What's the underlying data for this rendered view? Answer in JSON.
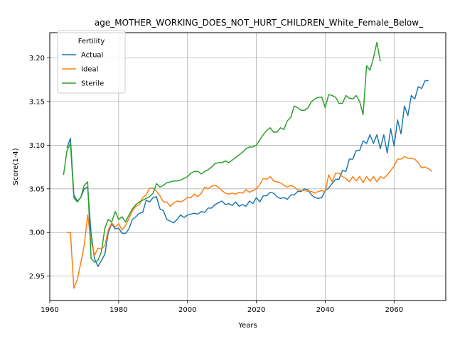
{
  "chart_data": {
    "type": "line",
    "title": "age_MOTHER_WORKING_DOES_NOT_HURT_CHILDREN_White_Female_Below_",
    "xlabel": "Years",
    "ylabel": "Score(1-4)",
    "xlim": [
      1960,
      2075
    ],
    "ylim": [
      2.922,
      3.229
    ],
    "xticks": [
      1960,
      1980,
      2000,
      2020,
      2040,
      2060
    ],
    "yticks": [
      2.95,
      3.0,
      3.05,
      3.1,
      3.15,
      3.2
    ],
    "ytick_labels": [
      "2.95",
      "3.00",
      "3.05",
      "3.10",
      "3.15",
      "3.20"
    ],
    "grid": true,
    "legend": {
      "title": "Fertility",
      "position": "top-left"
    },
    "series": [
      {
        "name": "Actual",
        "color": "#1f77b4",
        "points": [
          [
            1965,
            3.097
          ],
          [
            1966,
            3.108
          ],
          [
            1967,
            3.043
          ],
          [
            1968,
            3.036
          ],
          [
            1969,
            3.04
          ],
          [
            1970,
            3.05
          ],
          [
            1971,
            3.052
          ],
          [
            1972,
            2.999
          ],
          [
            1973,
            2.97
          ],
          [
            1974,
            2.961
          ],
          [
            1975,
            2.968
          ],
          [
            1976,
            2.975
          ],
          [
            1977,
            3.0
          ],
          [
            1978,
            3.01
          ],
          [
            1979,
            3.004
          ],
          [
            1980,
            3.005
          ],
          [
            1981,
            2.999
          ],
          [
            1982,
            2.999
          ],
          [
            1983,
            3.004
          ],
          [
            1984,
            3.015
          ],
          [
            1985,
            3.018
          ],
          [
            1986,
            3.022
          ],
          [
            1987,
            3.023
          ],
          [
            1988,
            3.037
          ],
          [
            1989,
            3.035
          ],
          [
            1990,
            3.04
          ],
          [
            1991,
            3.041
          ],
          [
            1992,
            3.027
          ],
          [
            1993,
            3.025
          ],
          [
            1994,
            3.015
          ],
          [
            1995,
            3.013
          ],
          [
            1996,
            3.011
          ],
          [
            1997,
            3.015
          ],
          [
            1998,
            3.02
          ],
          [
            1999,
            3.017
          ],
          [
            2000,
            3.02
          ],
          [
            2001,
            3.021
          ],
          [
            2002,
            3.022
          ],
          [
            2003,
            3.021
          ],
          [
            2004,
            3.024
          ],
          [
            2005,
            3.023
          ],
          [
            2006,
            3.028
          ],
          [
            2007,
            3.028
          ],
          [
            2008,
            3.032
          ],
          [
            2009,
            3.034
          ],
          [
            2010,
            3.036
          ],
          [
            2011,
            3.032
          ],
          [
            2012,
            3.033
          ],
          [
            2013,
            3.031
          ],
          [
            2014,
            3.035
          ],
          [
            2015,
            3.03
          ],
          [
            2016,
            3.032
          ],
          [
            2017,
            3.03
          ],
          [
            2018,
            3.036
          ],
          [
            2019,
            3.033
          ],
          [
            2020,
            3.04
          ],
          [
            2021,
            3.035
          ],
          [
            2022,
            3.042
          ],
          [
            2023,
            3.042
          ],
          [
            2024,
            3.046
          ],
          [
            2025,
            3.045
          ],
          [
            2026,
            3.041
          ],
          [
            2027,
            3.039
          ],
          [
            2028,
            3.04
          ],
          [
            2029,
            3.038
          ],
          [
            2030,
            3.043
          ],
          [
            2031,
            3.043
          ],
          [
            2032,
            3.047
          ],
          [
            2033,
            3.047
          ],
          [
            2034,
            3.05
          ],
          [
            2035,
            3.049
          ],
          [
            2036,
            3.043
          ],
          [
            2037,
            3.04
          ],
          [
            2038,
            3.039
          ],
          [
            2039,
            3.04
          ],
          [
            2040,
            3.048
          ],
          [
            2041,
            3.051
          ],
          [
            2042,
            3.056
          ],
          [
            2043,
            3.061
          ],
          [
            2044,
            3.061
          ],
          [
            2045,
            3.071
          ],
          [
            2046,
            3.07
          ],
          [
            2047,
            3.084
          ],
          [
            2048,
            3.084
          ],
          [
            2049,
            3.094
          ],
          [
            2050,
            3.094
          ],
          [
            2051,
            3.105
          ],
          [
            2052,
            3.102
          ],
          [
            2053,
            3.112
          ],
          [
            2054,
            3.102
          ],
          [
            2055,
            3.112
          ],
          [
            2056,
            3.096
          ],
          [
            2057,
            3.112
          ],
          [
            2058,
            3.091
          ],
          [
            2059,
            3.119
          ],
          [
            2060,
            3.099
          ],
          [
            2061,
            3.129
          ],
          [
            2062,
            3.113
          ],
          [
            2063,
            3.145
          ],
          [
            2064,
            3.134
          ],
          [
            2065,
            3.157
          ],
          [
            2066,
            3.153
          ],
          [
            2067,
            3.167
          ],
          [
            2068,
            3.165
          ],
          [
            2069,
            3.174
          ],
          [
            2070,
            3.174
          ]
        ]
      },
      {
        "name": "Ideal",
        "color": "#ff7f0e",
        "points": [
          [
            1965,
            3.0
          ],
          [
            1966,
            3.0
          ],
          [
            1967,
            2.936
          ],
          [
            1968,
            2.946
          ],
          [
            1969,
            2.965
          ],
          [
            1970,
            2.985
          ],
          [
            1971,
            3.02
          ],
          [
            1972,
            2.99
          ],
          [
            1973,
            2.974
          ],
          [
            1974,
            2.982
          ],
          [
            1975,
            2.981
          ],
          [
            1976,
            2.985
          ],
          [
            1977,
            3.003
          ],
          [
            1978,
            3.011
          ],
          [
            1979,
            3.006
          ],
          [
            1980,
            3.01
          ],
          [
            1981,
            3.003
          ],
          [
            1982,
            3.008
          ],
          [
            1983,
            3.016
          ],
          [
            1984,
            3.025
          ],
          [
            1985,
            3.03
          ],
          [
            1986,
            3.032
          ],
          [
            1987,
            3.04
          ],
          [
            1988,
            3.043
          ],
          [
            1989,
            3.051
          ],
          [
            1990,
            3.051
          ],
          [
            1991,
            3.047
          ],
          [
            1992,
            3.042
          ],
          [
            1993,
            3.035
          ],
          [
            1994,
            3.035
          ],
          [
            1995,
            3.03
          ],
          [
            1996,
            3.034
          ],
          [
            1997,
            3.036
          ],
          [
            1998,
            3.035
          ],
          [
            1999,
            3.037
          ],
          [
            2000,
            3.04
          ],
          [
            2001,
            3.04
          ],
          [
            2002,
            3.044
          ],
          [
            2003,
            3.041
          ],
          [
            2004,
            3.045
          ],
          [
            2005,
            3.052
          ],
          [
            2006,
            3.05
          ],
          [
            2007,
            3.053
          ],
          [
            2008,
            3.054
          ],
          [
            2009,
            3.052
          ],
          [
            2010,
            3.048
          ],
          [
            2011,
            3.045
          ],
          [
            2012,
            3.044
          ],
          [
            2013,
            3.045
          ],
          [
            2014,
            3.044
          ],
          [
            2015,
            3.046
          ],
          [
            2016,
            3.045
          ],
          [
            2017,
            3.049
          ],
          [
            2018,
            3.046
          ],
          [
            2019,
            3.048
          ],
          [
            2020,
            3.05
          ],
          [
            2021,
            3.055
          ],
          [
            2022,
            3.062
          ],
          [
            2023,
            3.061
          ],
          [
            2024,
            3.064
          ],
          [
            2025,
            3.059
          ],
          [
            2026,
            3.058
          ],
          [
            2027,
            3.057
          ],
          [
            2028,
            3.054
          ],
          [
            2029,
            3.052
          ],
          [
            2030,
            3.054
          ],
          [
            2031,
            3.052
          ],
          [
            2032,
            3.049
          ],
          [
            2033,
            3.048
          ],
          [
            2034,
            3.048
          ],
          [
            2035,
            3.047
          ],
          [
            2036,
            3.047
          ],
          [
            2037,
            3.045
          ],
          [
            2038,
            3.047
          ],
          [
            2039,
            3.048
          ],
          [
            2040,
            3.047
          ],
          [
            2041,
            3.066
          ],
          [
            2042,
            3.058
          ],
          [
            2043,
            3.068
          ],
          [
            2044,
            3.068
          ],
          [
            2045,
            3.064
          ],
          [
            2046,
            3.062
          ],
          [
            2047,
            3.058
          ],
          [
            2048,
            3.064
          ],
          [
            2049,
            3.059
          ],
          [
            2050,
            3.064
          ],
          [
            2051,
            3.057
          ],
          [
            2052,
            3.064
          ],
          [
            2053,
            3.059
          ],
          [
            2054,
            3.064
          ],
          [
            2055,
            3.058
          ],
          [
            2056,
            3.064
          ],
          [
            2057,
            3.062
          ],
          [
            2058,
            3.066
          ],
          [
            2059,
            3.071
          ],
          [
            2060,
            3.076
          ],
          [
            2061,
            3.084
          ],
          [
            2062,
            3.084
          ],
          [
            2063,
            3.087
          ],
          [
            2064,
            3.085
          ],
          [
            2065,
            3.085
          ],
          [
            2066,
            3.084
          ],
          [
            2067,
            3.08
          ],
          [
            2068,
            3.074
          ],
          [
            2069,
            3.075
          ],
          [
            2070,
            3.073
          ],
          [
            2071,
            3.07
          ]
        ]
      },
      {
        "name": "Sterile",
        "color": "#2ca02c",
        "points": [
          [
            1964,
            3.066
          ],
          [
            1965,
            3.094
          ],
          [
            1966,
            3.102
          ],
          [
            1967,
            3.04
          ],
          [
            1968,
            3.035
          ],
          [
            1969,
            3.04
          ],
          [
            1970,
            3.054
          ],
          [
            1971,
            3.058
          ],
          [
            1972,
            2.97
          ],
          [
            1973,
            2.966
          ],
          [
            1974,
            2.968
          ],
          [
            1975,
            2.978
          ],
          [
            1976,
            3.005
          ],
          [
            1977,
            3.015
          ],
          [
            1978,
            3.012
          ],
          [
            1979,
            3.024
          ],
          [
            1980,
            3.015
          ],
          [
            1981,
            3.018
          ],
          [
            1982,
            3.012
          ],
          [
            1983,
            3.02
          ],
          [
            1984,
            3.027
          ],
          [
            1985,
            3.032
          ],
          [
            1986,
            3.035
          ],
          [
            1987,
            3.037
          ],
          [
            1988,
            3.039
          ],
          [
            1989,
            3.041
          ],
          [
            1990,
            3.045
          ],
          [
            1991,
            3.056
          ],
          [
            1992,
            3.052
          ],
          [
            1993,
            3.054
          ],
          [
            1994,
            3.057
          ],
          [
            1995,
            3.058
          ],
          [
            1996,
            3.059
          ],
          [
            1997,
            3.059
          ],
          [
            1998,
            3.06
          ],
          [
            1999,
            3.062
          ],
          [
            2000,
            3.064
          ],
          [
            2001,
            3.068
          ],
          [
            2002,
            3.07
          ],
          [
            2003,
            3.07
          ],
          [
            2004,
            3.067
          ],
          [
            2005,
            3.07
          ],
          [
            2006,
            3.072
          ],
          [
            2007,
            3.075
          ],
          [
            2008,
            3.079
          ],
          [
            2009,
            3.08
          ],
          [
            2010,
            3.08
          ],
          [
            2011,
            3.082
          ],
          [
            2012,
            3.08
          ],
          [
            2013,
            3.083
          ],
          [
            2014,
            3.086
          ],
          [
            2015,
            3.089
          ],
          [
            2016,
            3.092
          ],
          [
            2017,
            3.096
          ],
          [
            2018,
            3.098
          ],
          [
            2019,
            3.098
          ],
          [
            2020,
            3.1
          ],
          [
            2021,
            3.106
          ],
          [
            2022,
            3.112
          ],
          [
            2023,
            3.117
          ],
          [
            2024,
            3.12
          ],
          [
            2025,
            3.115
          ],
          [
            2026,
            3.115
          ],
          [
            2027,
            3.12
          ],
          [
            2028,
            3.118
          ],
          [
            2029,
            3.128
          ],
          [
            2030,
            3.132
          ],
          [
            2031,
            3.145
          ],
          [
            2032,
            3.143
          ],
          [
            2033,
            3.14
          ],
          [
            2034,
            3.14
          ],
          [
            2035,
            3.143
          ],
          [
            2036,
            3.15
          ],
          [
            2037,
            3.153
          ],
          [
            2038,
            3.155
          ],
          [
            2039,
            3.155
          ],
          [
            2040,
            3.143
          ],
          [
            2041,
            3.158
          ],
          [
            2042,
            3.157
          ],
          [
            2043,
            3.155
          ],
          [
            2044,
            3.148
          ],
          [
            2045,
            3.148
          ],
          [
            2046,
            3.157
          ],
          [
            2047,
            3.154
          ],
          [
            2048,
            3.153
          ],
          [
            2049,
            3.157
          ],
          [
            2050,
            3.15
          ],
          [
            2051,
            3.135
          ],
          [
            2052,
            3.191
          ],
          [
            2053,
            3.186
          ],
          [
            2054,
            3.2
          ],
          [
            2055,
            3.218
          ],
          [
            2056,
            3.196
          ]
        ]
      }
    ]
  }
}
